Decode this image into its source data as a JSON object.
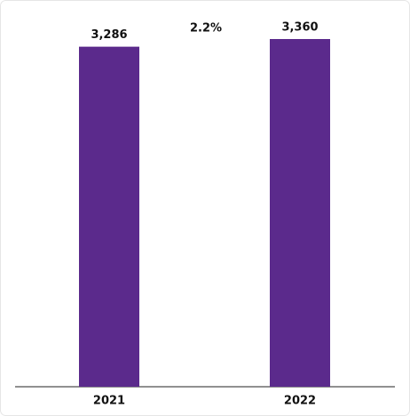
{
  "chart_data": {
    "type": "bar",
    "categories": [
      "2021",
      "2022"
    ],
    "values": [
      3286,
      3360
    ],
    "value_labels": [
      "3,286",
      "3,360"
    ],
    "color": "#5b2a8c",
    "annotation": "2.2%"
  }
}
